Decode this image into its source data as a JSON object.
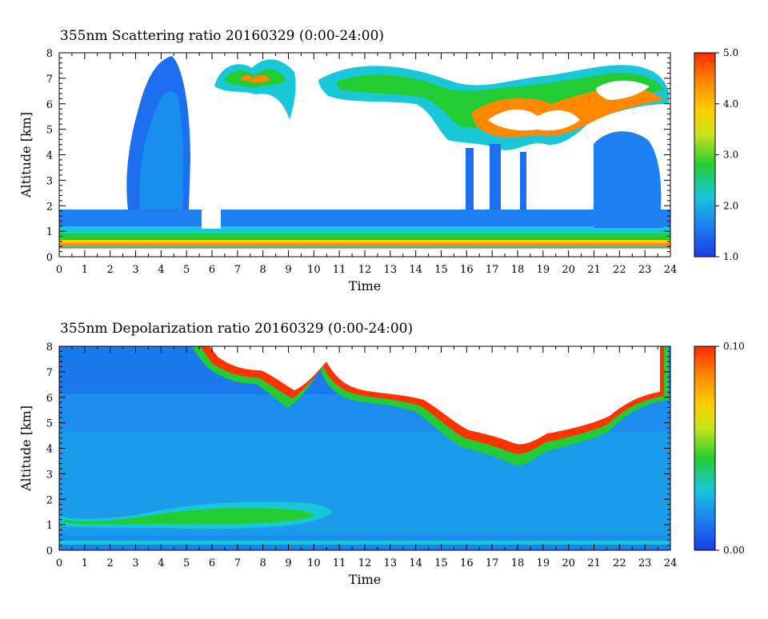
{
  "panels": [
    {
      "id": "scattering",
      "title": "355nm Scattering ratio  20160329 (0:00-24:00)",
      "chart_data": {
        "type": "heatmap",
        "title": "355nm Scattering ratio  20160329 (0:00-24:00)",
        "xlabel": "Time",
        "ylabel": "Altitude [km]",
        "xlim": [
          0,
          24
        ],
        "ylim": [
          0,
          8
        ],
        "x_ticks": [
          0,
          1,
          2,
          3,
          4,
          5,
          6,
          7,
          8,
          9,
          10,
          11,
          12,
          13,
          14,
          15,
          16,
          17,
          18,
          19,
          20,
          21,
          22,
          23,
          24
        ],
        "y_ticks": [
          0,
          1,
          2,
          3,
          4,
          5,
          6,
          7,
          8
        ],
        "colorbar": {
          "min": 1.0,
          "max": 5.0,
          "ticks": [
            "1.0",
            "2.0",
            "3.0",
            "4.0",
            "5.0"
          ]
        },
        "colors": {
          "low": "#1a3ee8",
          "mid": "#22cc33",
          "high": "#ff3300",
          "above_range": "#ffffff"
        }
      }
    },
    {
      "id": "depolarization",
      "title": "355nm Depolarization ratio  20160329 (0:00-24:00)",
      "chart_data": {
        "type": "heatmap",
        "title": "355nm Depolarization ratio  20160329 (0:00-24:00)",
        "xlabel": "Time",
        "ylabel": "Altitude [km]",
        "xlim": [
          0,
          24
        ],
        "ylim": [
          0,
          8
        ],
        "x_ticks": [
          0,
          1,
          2,
          3,
          4,
          5,
          6,
          7,
          8,
          9,
          10,
          11,
          12,
          13,
          14,
          15,
          16,
          17,
          18,
          19,
          20,
          21,
          22,
          23,
          24
        ],
        "y_ticks": [
          0,
          1,
          2,
          3,
          4,
          5,
          6,
          7,
          8
        ],
        "colorbar": {
          "min": 0.0,
          "max": 0.1,
          "ticks": [
            "0.00",
            "0.10"
          ]
        },
        "colors": {
          "low": "#1a3ee8",
          "mid": "#22cc33",
          "high": "#ff3300",
          "above_range": "#ffffff"
        }
      }
    }
  ]
}
